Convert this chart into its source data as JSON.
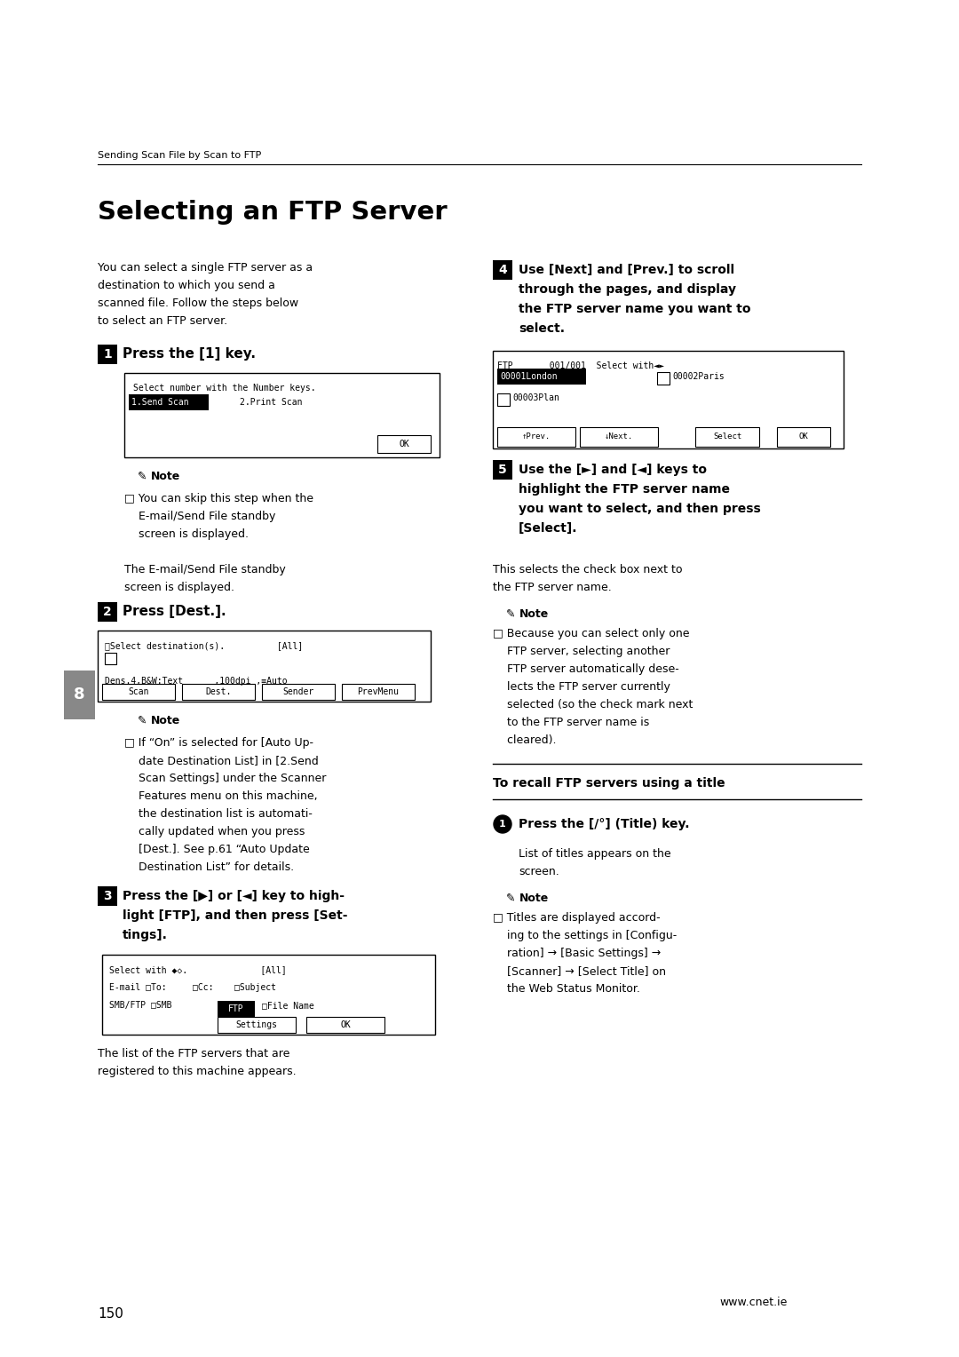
{
  "bg_color": "#ffffff",
  "header_text": "Sending Scan File by Scan to FTP",
  "title": "Selecting an FTP Server",
  "page_number": "150",
  "website": "www.cnet.ie"
}
